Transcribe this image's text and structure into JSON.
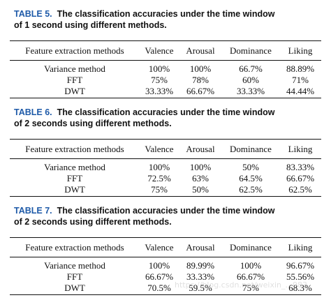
{
  "tables": [
    {
      "caption_label": "TABLE 5.",
      "caption_line1": "The classification accuracies under the time window",
      "caption_line2": "of 1 second using different methods.",
      "headers": [
        "Feature extraction methods",
        "Valence",
        "Arousal",
        "Dominance",
        "Liking"
      ],
      "rows": [
        [
          "Variance method",
          "100%",
          "100%",
          "66.7%",
          "88.89%"
        ],
        [
          "FFT",
          "75%",
          "78%",
          "60%",
          "71%"
        ],
        [
          "DWT",
          "33.33%",
          "66.67%",
          "33.33%",
          "44.44%"
        ]
      ]
    },
    {
      "caption_label": "TABLE 6.",
      "caption_line1": "The classification accuracies under the time window",
      "caption_line2": "of 2 seconds using different methods.",
      "headers": [
        "Feature extraction methods",
        "Valence",
        "Arousal",
        "Dominance",
        "Liking"
      ],
      "rows": [
        [
          "Variance method",
          "100%",
          "100%",
          "50%",
          "83.33%"
        ],
        [
          "FFT",
          "72.5%",
          "63%",
          "64.5%",
          "66.67%"
        ],
        [
          "DWT",
          "75%",
          "50%",
          "62.5%",
          "62.5%"
        ]
      ]
    },
    {
      "caption_label": "TABLE 7.",
      "caption_line1": "The classification accuracies under the time window",
      "caption_line2": "of 2 seconds using different methods.",
      "headers": [
        "Feature extraction methods",
        "Valence",
        "Arousal",
        "Dominance",
        "Liking"
      ],
      "rows": [
        [
          "Variance method",
          "100%",
          "89.99%",
          "100%",
          "96.67%"
        ],
        [
          "FFT",
          "66.67%",
          "33.33%",
          "66.67%",
          "55.56%"
        ],
        [
          "DWT",
          "70.5%",
          "59.5%",
          "75%",
          "68.3%"
        ]
      ]
    }
  ],
  "watermark": "https://blog.csdn.net/weixin_...983"
}
